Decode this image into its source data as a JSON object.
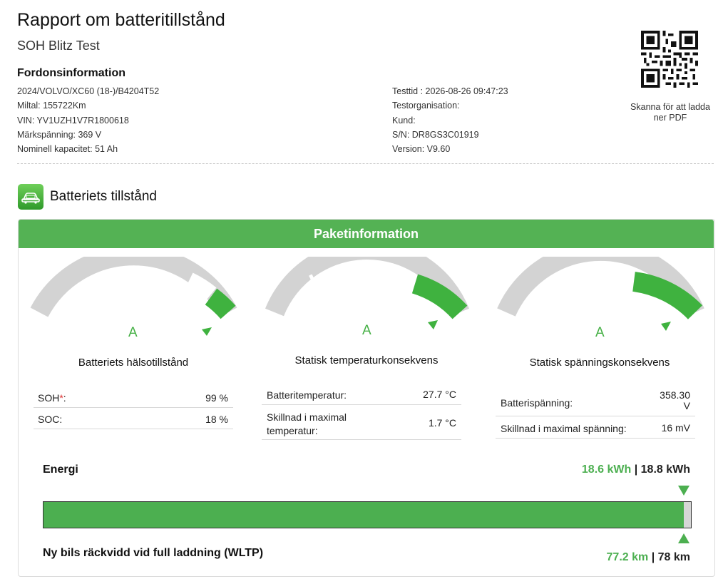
{
  "header": {
    "title": "Rapport om batteritillstånd",
    "subtitle": "SOH Blitz Test",
    "section_title": "Fordonsinformation"
  },
  "vehicle": {
    "left": [
      "2024/VOLVO/XC60 (18-)/B4204T52",
      "Miltal: 155722Km",
      "VIN: YV1UZH1V7R1800618",
      "Märkspänning: 369 V",
      "Nominell kapacitet: 51 Ah"
    ],
    "right": [
      "Testtid : 2026-08-26 09:47:23",
      "Testorganisation:",
      "Kund:",
      "S/N: DR8GS3C01919",
      "Version: V9.60"
    ]
  },
  "qr": {
    "caption": "Skanna för att ladda ner PDF",
    "icon": "qr-code-icon"
  },
  "battery_section": {
    "title": "Batteriets tillstånd",
    "icon": "battery-car-icon"
  },
  "card": {
    "header": "Paketinformation"
  },
  "gauges": [
    {
      "grade": "A",
      "label": "Batteriets hälsotillstånd",
      "level": 0.99
    },
    {
      "grade": "A",
      "label": "Statisk temperaturkonsekvens",
      "level": 0.8
    },
    {
      "grade": "A",
      "label": "Statisk spänningskonsekvens",
      "level": 0.8
    }
  ],
  "metrics": {
    "soh_label": "SOH",
    "soh_star": "*",
    "soh_colon": ":",
    "soh_value": "99 %",
    "soc_label": "SOC:",
    "soc_value": "18 %",
    "bat_temp_label": "Batteritemperatur:",
    "bat_temp_value": "27.7 °C",
    "temp_diff_label_1": "Skillnad i maximal",
    "temp_diff_label_2": "temperatur:",
    "temp_diff_value": "1.7 °C",
    "bat_volt_label": "Batterispänning:",
    "bat_volt_value_1": "358.30",
    "bat_volt_value_2": "V",
    "volt_diff_label": "Skillnad i maximal spänning:",
    "volt_diff_value": "16 mV"
  },
  "energy": {
    "label": "Energi",
    "current": "18.6 kWh",
    "separator": "|",
    "total": "18.8 kWh",
    "fill_fraction": 0.989
  },
  "range": {
    "label": "Ny bils räckvidd vid full laddning (WLTP)",
    "current": "77.2 km",
    "separator": "|",
    "total": "78 km"
  },
  "colors": {
    "accent": "#54b254",
    "gauge_grey": "#d3d3d3",
    "gauge_green": "#3fb23f"
  }
}
